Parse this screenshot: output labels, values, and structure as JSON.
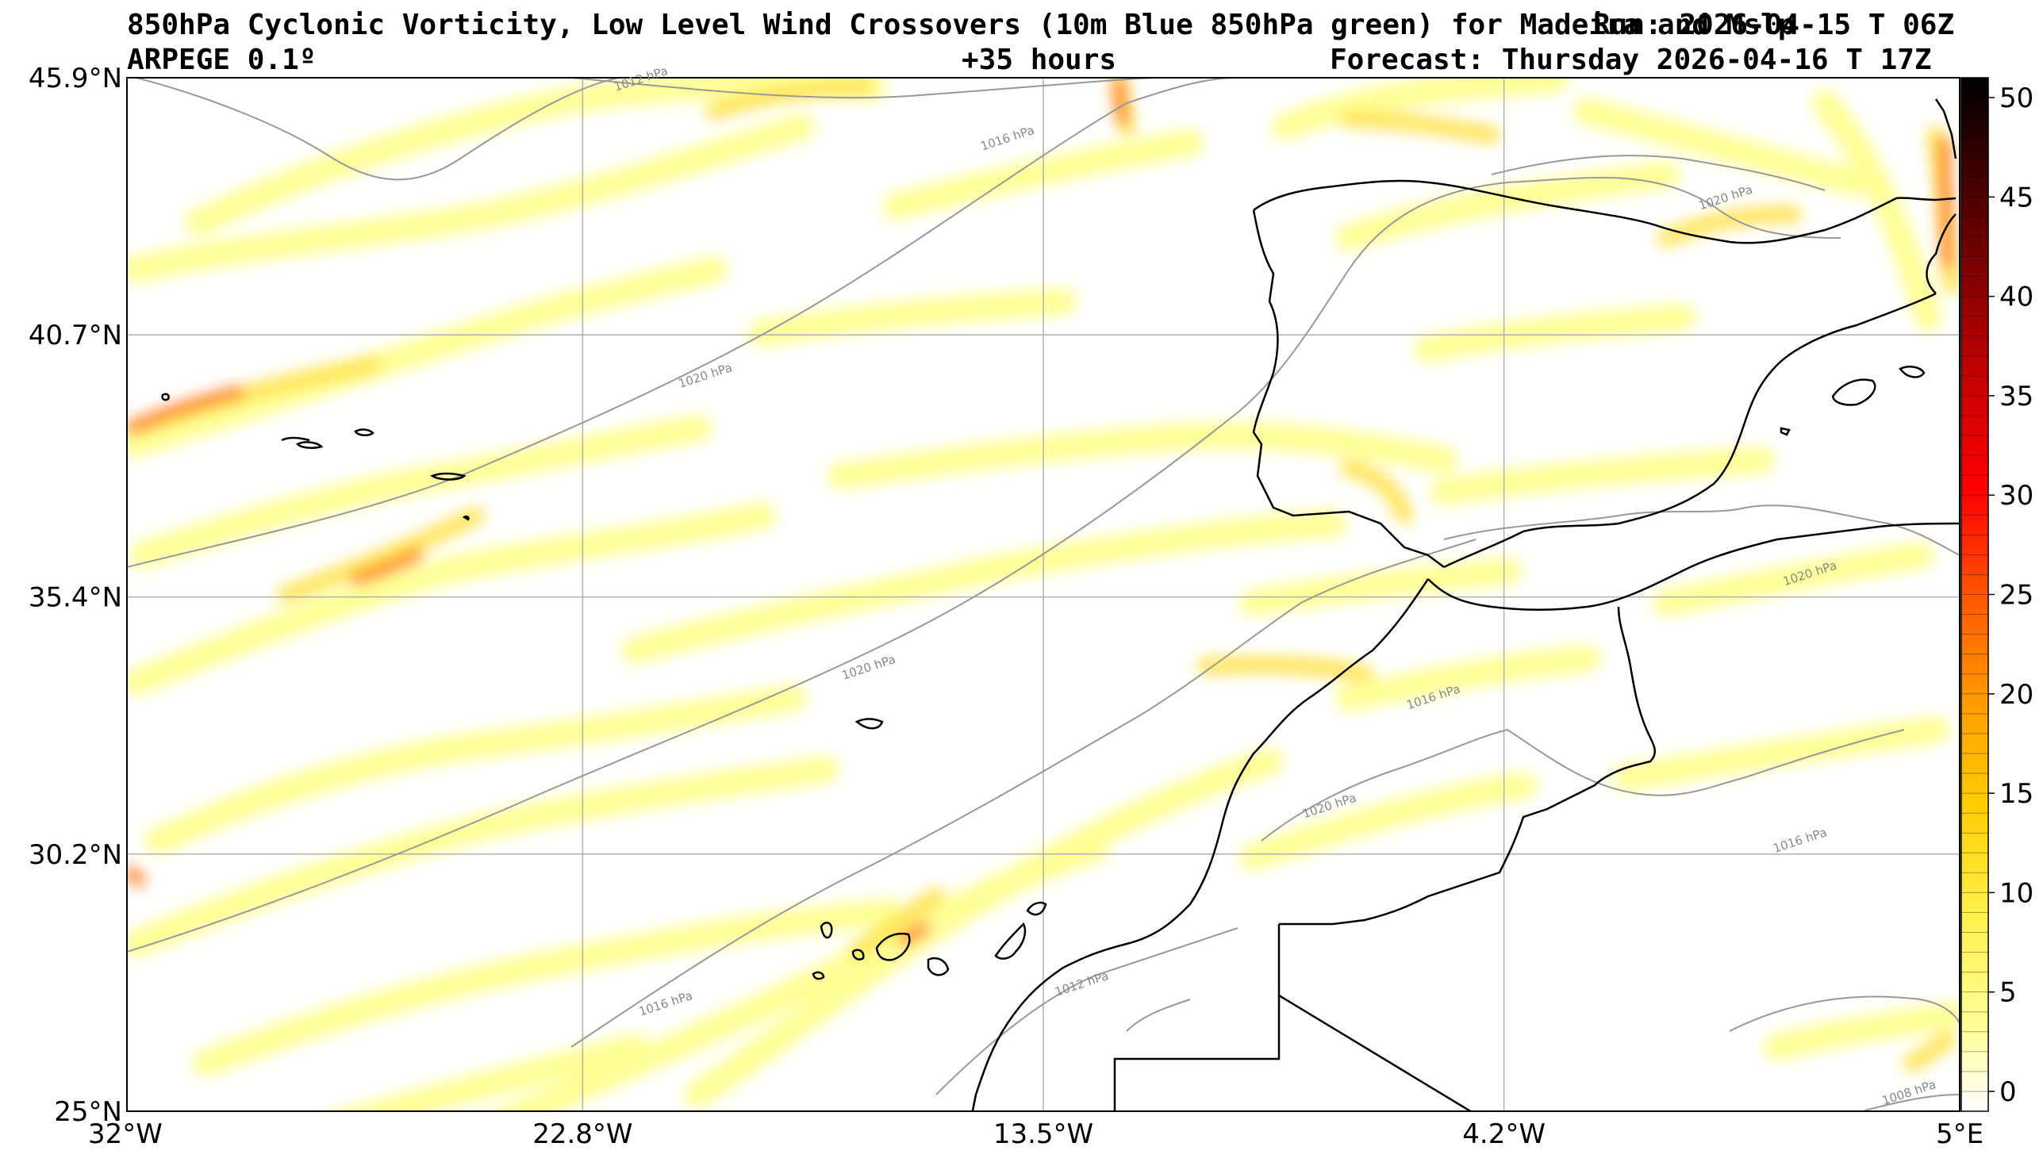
{
  "header": {
    "title": "850hPa Cyclonic Vorticity, Low Level Wind Crossovers (10m Blue 850hPa green) for Madeira and Mslp",
    "run": "Run: 2026-04-15 T 06Z",
    "model": "ARPEGE 0.1º",
    "lead": "+35 hours",
    "forecast": "Forecast: Thursday 2026-04-16 T 17Z"
  },
  "map": {
    "lon_range": [
      -32,
      5
    ],
    "lat_range": [
      25,
      45.9
    ],
    "lat_ticks": [
      {
        "value": 45.9,
        "label": "45.9°N"
      },
      {
        "value": 40.7,
        "label": "40.7°N"
      },
      {
        "value": 35.4,
        "label": "35.4°N"
      },
      {
        "value": 30.2,
        "label": "30.2°N"
      },
      {
        "value": 25.0,
        "label": "25°N"
      }
    ],
    "lon_ticks": [
      {
        "value": -32.0,
        "label": "32°W"
      },
      {
        "value": -22.8,
        "label": "22.8°W"
      },
      {
        "value": -13.5,
        "label": "13.5°W"
      },
      {
        "value": -4.2,
        "label": "4.2°W"
      },
      {
        "value": 5.0,
        "label": "5°E"
      }
    ],
    "isobar_labels": [
      {
        "text": "1012 hPa",
        "lon": -21.6,
        "lat": 45.8
      },
      {
        "text": "1016 hPa",
        "lon": -14.2,
        "lat": 44.6
      },
      {
        "text": "1020 hPa",
        "lon": -20.3,
        "lat": 39.8
      },
      {
        "text": "1020 hPa",
        "lon": -17.0,
        "lat": 33.9
      },
      {
        "text": "1016 hPa",
        "lon": -21.1,
        "lat": 27.1
      },
      {
        "text": "1012 hPa",
        "lon": -12.7,
        "lat": 27.5
      },
      {
        "text": "1020 hPa",
        "lon": 0.3,
        "lat": 43.4
      },
      {
        "text": "1020 hPa",
        "lon": 2.0,
        "lat": 35.8
      },
      {
        "text": "1016 hPa",
        "lon": -5.6,
        "lat": 33.3
      },
      {
        "text": "1020 hPa",
        "lon": -7.7,
        "lat": 31.1
      },
      {
        "text": "1016 hPa",
        "lon": 1.8,
        "lat": 30.4
      },
      {
        "text": "1008 hPa",
        "lon": 4.0,
        "lat": 25.3
      }
    ]
  },
  "colorbar": {
    "min": -1,
    "max": 51,
    "ticks": [
      0,
      5,
      10,
      15,
      20,
      25,
      30,
      35,
      40,
      45,
      50
    ],
    "colors": [
      "#ffffff",
      "#ffff99",
      "#ffee44",
      "#ffcc00",
      "#ff9900",
      "#ff5500",
      "#ff0000",
      "#cc0000",
      "#880000",
      "#440000",
      "#000000"
    ]
  },
  "colors": {
    "vort_light": "#ffff80",
    "vort_mid": "#ffd700",
    "vort_high": "#ff6a00",
    "isobar": "#999999",
    "grid": "#b0b0b0",
    "coast": "#000000"
  }
}
